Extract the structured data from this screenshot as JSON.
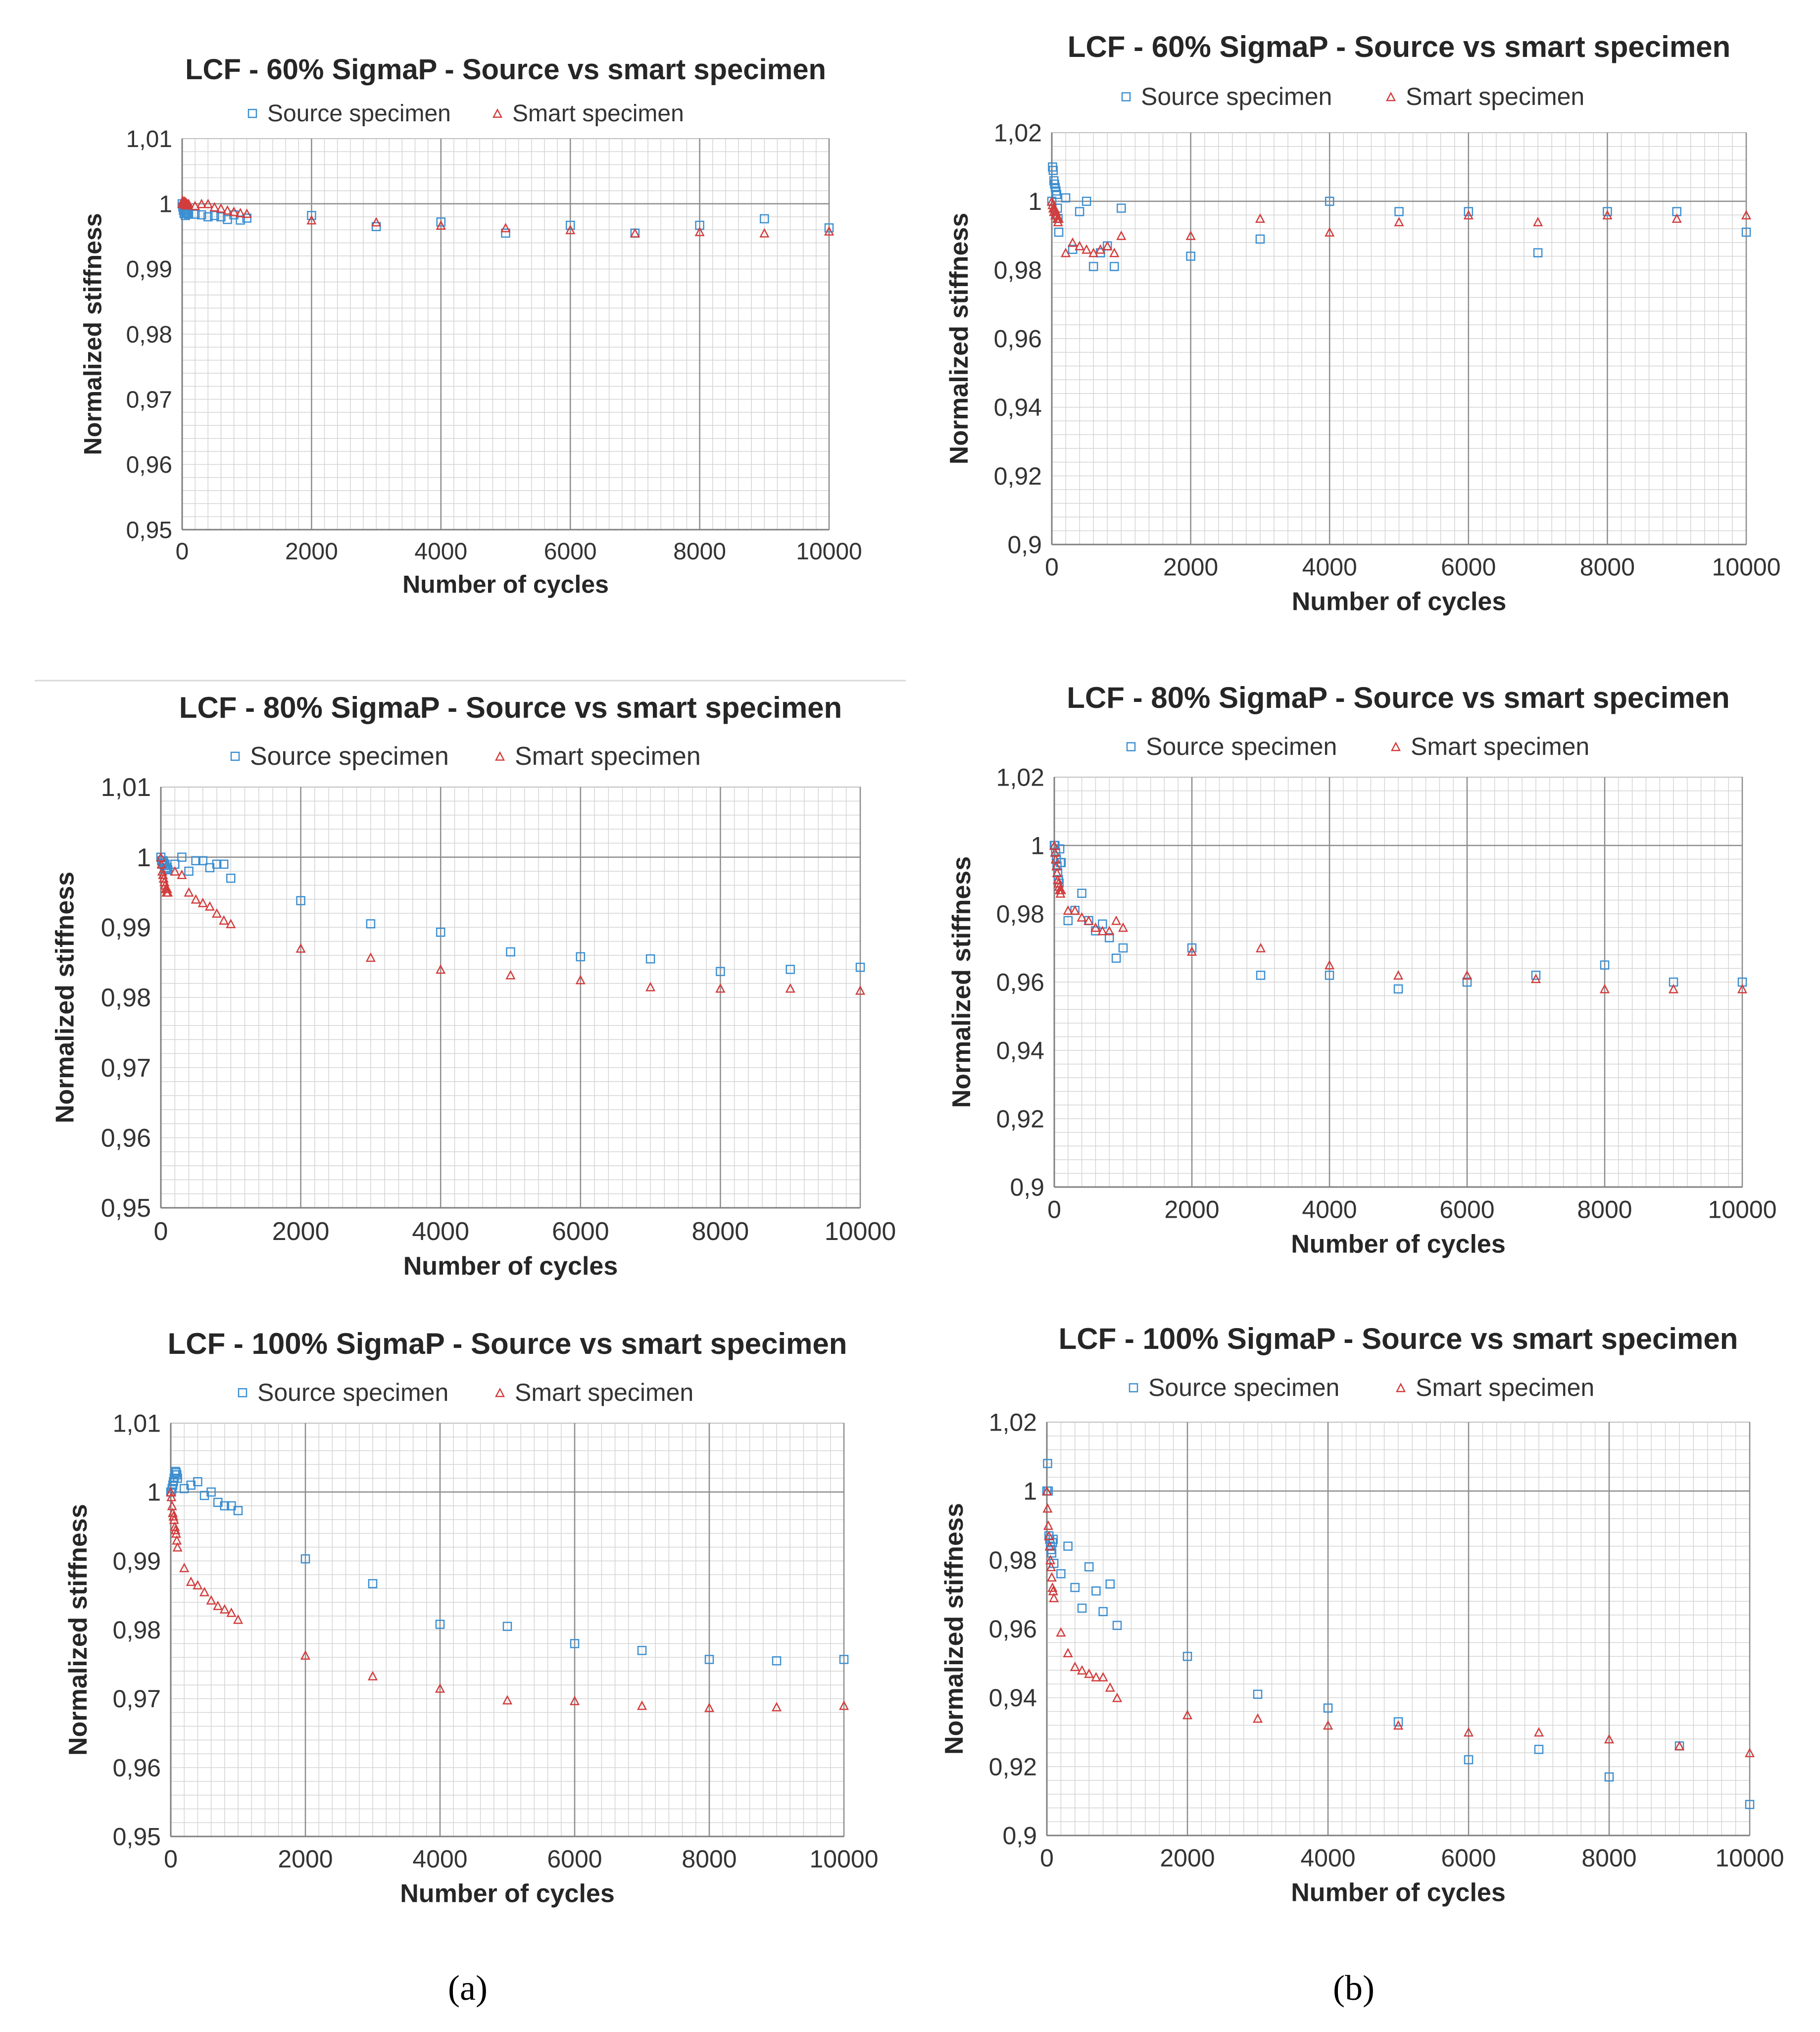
{
  "panel_labels": {
    "a": "(a)",
    "b": "(b)"
  },
  "chart_data": [
    {
      "type": "scatter",
      "title": "LCF - 60% SigmaP - Source vs smart specimen",
      "xlabel": "Number of cycles",
      "ylabel": "Normalized stiffness",
      "xlim": [
        0,
        10000
      ],
      "ylim": [
        0.95,
        1.01
      ],
      "xticks": [
        0,
        2000,
        4000,
        6000,
        8000,
        10000
      ],
      "xtick_labels": [
        "0",
        "2000",
        "4000",
        "6000",
        "8000",
        "10000"
      ],
      "yticks": [
        0.95,
        0.96,
        0.97,
        0.98,
        0.99,
        1.0,
        1.01
      ],
      "ytick_labels": [
        "0,95",
        "0,96",
        "0,97",
        "0,98",
        "0,99",
        "1",
        "1,01"
      ],
      "grid": true,
      "legend": "top",
      "series": [
        {
          "name": "Source specimen",
          "marker": "square",
          "color": "#3c8fd1",
          "x": [
            0,
            10,
            20,
            30,
            40,
            50,
            60,
            70,
            80,
            90,
            100,
            200,
            300,
            400,
            500,
            600,
            700,
            800,
            900,
            1000,
            2000,
            3000,
            4000,
            5000,
            6000,
            7000,
            8000,
            9000,
            10000
          ],
          "y": [
            1.0,
            0.9995,
            0.999,
            0.9985,
            0.999,
            0.9982,
            0.9988,
            0.9985,
            0.9992,
            0.9986,
            0.9984,
            0.9984,
            0.9983,
            0.998,
            0.9982,
            0.998,
            0.9976,
            0.9983,
            0.9975,
            0.9978,
            0.9982,
            0.9965,
            0.9972,
            0.9955,
            0.9967,
            0.9955,
            0.9967,
            0.9977,
            0.9963
          ]
        },
        {
          "name": "Smart specimen",
          "marker": "triangle",
          "color": "#d23c3c",
          "x": [
            0,
            10,
            20,
            30,
            40,
            50,
            60,
            70,
            80,
            90,
            100,
            200,
            300,
            400,
            500,
            600,
            700,
            800,
            900,
            1000,
            2000,
            3000,
            4000,
            5000,
            6000,
            7000,
            8000,
            9000,
            10000
          ],
          "y": [
            1.0,
            1.0005,
            1.0003,
            1.0,
            1.0004,
            0.9998,
            1.0002,
            0.9999,
            1.0,
            0.9998,
            1.0,
            0.9997,
            1.0,
            1.0,
            0.9995,
            0.9993,
            0.999,
            0.9988,
            0.9986,
            0.9985,
            0.9975,
            0.9972,
            0.9967,
            0.9963,
            0.996,
            0.9955,
            0.9957,
            0.9955,
            0.9958
          ]
        }
      ]
    },
    {
      "type": "scatter",
      "title": "LCF - 60% SigmaP - Source vs smart specimen",
      "xlabel": "Number of cycles",
      "ylabel": "Normalized stiffness",
      "xlim": [
        0,
        10000
      ],
      "ylim": [
        0.9,
        1.02
      ],
      "xticks": [
        0,
        2000,
        4000,
        6000,
        8000,
        10000
      ],
      "xtick_labels": [
        "0",
        "2000",
        "4000",
        "6000",
        "8000",
        "10000"
      ],
      "yticks": [
        0.9,
        0.92,
        0.94,
        0.96,
        0.98,
        1.0,
        1.02
      ],
      "ytick_labels": [
        "0,9",
        "0,92",
        "0,94",
        "0,96",
        "0,98",
        "1",
        "1,02"
      ],
      "grid": true,
      "legend": "top",
      "series": [
        {
          "name": "Source specimen",
          "marker": "square",
          "color": "#3c8fd1",
          "x": [
            0,
            10,
            20,
            30,
            40,
            50,
            60,
            70,
            80,
            90,
            100,
            200,
            300,
            400,
            500,
            600,
            700,
            800,
            900,
            1000,
            2000,
            3000,
            4000,
            5000,
            6000,
            7000,
            8000,
            9000,
            10000
          ],
          "y": [
            1.0,
            1.01,
            1.009,
            1.006,
            1.005,
            1.004,
            1.003,
            1.002,
            0.998,
            0.995,
            0.991,
            1.001,
            0.986,
            0.997,
            1.0,
            0.981,
            0.985,
            0.987,
            0.981,
            0.998,
            0.984,
            0.989,
            1.0,
            0.997,
            0.997,
            0.985,
            0.997,
            0.997,
            0.991
          ]
        },
        {
          "name": "Smart specimen",
          "marker": "triangle",
          "color": "#d23c3c",
          "x": [
            0,
            10,
            20,
            30,
            40,
            50,
            60,
            70,
            80,
            90,
            100,
            200,
            300,
            400,
            500,
            600,
            700,
            800,
            900,
            1000,
            2000,
            3000,
            4000,
            5000,
            6000,
            7000,
            8000,
            9000,
            10000
          ],
          "y": [
            1.0,
            0.999,
            0.998,
            0.997,
            0.998,
            0.996,
            0.997,
            0.996,
            0.995,
            0.994,
            0.995,
            0.985,
            0.988,
            0.987,
            0.986,
            0.985,
            0.986,
            0.987,
            0.985,
            0.99,
            0.99,
            0.995,
            0.991,
            0.994,
            0.996,
            0.994,
            0.996,
            0.995,
            0.996
          ]
        }
      ]
    },
    {
      "type": "scatter",
      "title": "LCF - 80% SigmaP - Source vs smart specimen",
      "xlabel": "Number of cycles",
      "ylabel": "Normalized stiffness",
      "xlim": [
        0,
        10000
      ],
      "ylim": [
        0.95,
        1.01
      ],
      "xticks": [
        0,
        2000,
        4000,
        6000,
        8000,
        10000
      ],
      "xtick_labels": [
        "0",
        "2000",
        "4000",
        "6000",
        "8000",
        "10000"
      ],
      "yticks": [
        0.95,
        0.96,
        0.97,
        0.98,
        0.99,
        1.0,
        1.01
      ],
      "ytick_labels": [
        "0,95",
        "0,96",
        "0,97",
        "0,98",
        "0,99",
        "1",
        "1,01"
      ],
      "grid": true,
      "legend": "top",
      "series": [
        {
          "name": "Source specimen",
          "marker": "square",
          "color": "#3c8fd1",
          "x": [
            0,
            10,
            20,
            30,
            40,
            50,
            60,
            70,
            80,
            90,
            100,
            200,
            300,
            400,
            500,
            600,
            700,
            800,
            900,
            1000,
            2000,
            3000,
            4000,
            5000,
            6000,
            7000,
            8000,
            9000,
            10000
          ],
          "y": [
            1.0,
            0.9995,
            0.999,
            0.9995,
            0.9992,
            0.9988,
            0.999,
            0.9985,
            0.9983,
            0.9985,
            0.9982,
            0.999,
            1.0,
            0.998,
            0.9995,
            0.9995,
            0.9985,
            0.999,
            0.999,
            0.997,
            0.9938,
            0.9905,
            0.9893,
            0.9865,
            0.9858,
            0.9855,
            0.9837,
            0.984,
            0.9843
          ]
        },
        {
          "name": "Smart specimen",
          "marker": "triangle",
          "color": "#d23c3c",
          "x": [
            0,
            10,
            20,
            30,
            40,
            50,
            60,
            70,
            80,
            90,
            100,
            200,
            300,
            400,
            500,
            600,
            700,
            800,
            900,
            1000,
            2000,
            3000,
            4000,
            5000,
            6000,
            7000,
            8000,
            9000,
            10000
          ],
          "y": [
            1.0,
            0.999,
            0.998,
            0.9975,
            0.997,
            0.9965,
            0.996,
            0.9955,
            0.995,
            0.9955,
            0.995,
            0.998,
            0.9975,
            0.995,
            0.994,
            0.9935,
            0.993,
            0.992,
            0.991,
            0.9905,
            0.987,
            0.9857,
            0.984,
            0.9832,
            0.9825,
            0.9815,
            0.9813,
            0.9813,
            0.981
          ]
        }
      ]
    },
    {
      "type": "scatter",
      "title": "LCF - 80% SigmaP - Source vs smart specimen",
      "xlabel": "Number of cycles",
      "ylabel": "Normalized stiffness",
      "xlim": [
        0,
        10000
      ],
      "ylim": [
        0.9,
        1.02
      ],
      "xticks": [
        0,
        2000,
        4000,
        6000,
        8000,
        10000
      ],
      "xtick_labels": [
        "0",
        "2000",
        "4000",
        "6000",
        "8000",
        "10000"
      ],
      "yticks": [
        0.9,
        0.92,
        0.94,
        0.96,
        0.98,
        1.0,
        1.02
      ],
      "ytick_labels": [
        "0,9",
        "0,92",
        "0,94",
        "0,96",
        "0,98",
        "1",
        "1,02"
      ],
      "grid": true,
      "legend": "top",
      "series": [
        {
          "name": "Source specimen",
          "marker": "square",
          "color": "#3c8fd1",
          "x": [
            0,
            10,
            20,
            30,
            40,
            50,
            60,
            70,
            80,
            90,
            100,
            200,
            300,
            400,
            500,
            600,
            700,
            800,
            900,
            1000,
            2000,
            3000,
            4000,
            5000,
            6000,
            7000,
            8000,
            9000,
            10000
          ],
          "y": [
            1.0,
            1.0,
            0.998,
            0.996,
            0.994,
            0.992,
            0.99,
            0.989,
            0.999,
            0.995,
            0.995,
            0.978,
            0.981,
            0.986,
            0.978,
            0.975,
            0.977,
            0.973,
            0.967,
            0.97,
            0.97,
            0.962,
            0.962,
            0.958,
            0.96,
            0.962,
            0.965,
            0.96,
            0.96
          ]
        },
        {
          "name": "Smart specimen",
          "marker": "triangle",
          "color": "#d23c3c",
          "x": [
            0,
            10,
            20,
            30,
            40,
            50,
            60,
            70,
            80,
            90,
            100,
            200,
            300,
            400,
            500,
            600,
            700,
            800,
            900,
            1000,
            2000,
            3000,
            4000,
            5000,
            6000,
            7000,
            8000,
            9000,
            10000
          ],
          "y": [
            1.0,
            0.998,
            0.996,
            0.994,
            0.992,
            0.99,
            0.989,
            0.988,
            0.987,
            0.986,
            0.987,
            0.981,
            0.981,
            0.979,
            0.978,
            0.976,
            0.975,
            0.975,
            0.978,
            0.976,
            0.969,
            0.97,
            0.965,
            0.962,
            0.962,
            0.961,
            0.958,
            0.958,
            0.958
          ]
        }
      ]
    },
    {
      "type": "scatter",
      "title": "LCF - 100% SigmaP - Source vs smart specimen",
      "xlabel": "Number of cycles",
      "ylabel": "Normalized stiffness",
      "xlim": [
        0,
        10000
      ],
      "ylim": [
        0.95,
        1.01
      ],
      "xticks": [
        0,
        2000,
        4000,
        6000,
        8000,
        10000
      ],
      "xtick_labels": [
        "0",
        "2000",
        "4000",
        "6000",
        "8000",
        "10000"
      ],
      "yticks": [
        0.95,
        0.96,
        0.97,
        0.98,
        0.99,
        1.0,
        1.01
      ],
      "ytick_labels": [
        "0,95",
        "0,96",
        "0,97",
        "0,98",
        "0,99",
        "1",
        "1,01"
      ],
      "grid": true,
      "legend": "top",
      "series": [
        {
          "name": "Source specimen",
          "marker": "square",
          "color": "#3c8fd1",
          "x": [
            0,
            10,
            20,
            30,
            40,
            50,
            60,
            70,
            80,
            90,
            100,
            200,
            300,
            400,
            500,
            600,
            700,
            800,
            900,
            1000,
            2000,
            3000,
            4000,
            5000,
            6000,
            7000,
            8000,
            9000,
            10000
          ],
          "y": [
            1.0,
            1.0,
            1.0005,
            1.001,
            1.0015,
            1.002,
            1.0025,
            1.003,
            1.0028,
            1.0025,
            1.002,
            1.0005,
            1.001,
            1.0015,
            0.9995,
            1.0,
            0.9985,
            0.998,
            0.998,
            0.9973,
            0.9903,
            0.9867,
            0.9808,
            0.9805,
            0.978,
            0.977,
            0.9757,
            0.9755,
            0.9757
          ]
        },
        {
          "name": "Smart specimen",
          "marker": "triangle",
          "color": "#d23c3c",
          "x": [
            0,
            10,
            20,
            30,
            40,
            50,
            60,
            70,
            80,
            90,
            100,
            200,
            300,
            400,
            500,
            600,
            700,
            800,
            900,
            1000,
            2000,
            3000,
            4000,
            5000,
            6000,
            7000,
            8000,
            9000,
            10000
          ],
          "y": [
            1.0,
            0.9993,
            0.998,
            0.997,
            0.9965,
            0.996,
            0.995,
            0.9945,
            0.994,
            0.993,
            0.992,
            0.989,
            0.987,
            0.9865,
            0.9855,
            0.9843,
            0.9835,
            0.983,
            0.9825,
            0.9815,
            0.9763,
            0.9733,
            0.9715,
            0.9698,
            0.9697,
            0.969,
            0.9687,
            0.9688,
            0.969
          ]
        }
      ]
    },
    {
      "type": "scatter",
      "title": "LCF - 100% SigmaP - Source vs smart specimen",
      "xlabel": "Number of cycles",
      "ylabel": "Normalized stiffness",
      "xlim": [
        0,
        10000
      ],
      "ylim": [
        0.9,
        1.02
      ],
      "xticks": [
        0,
        2000,
        4000,
        6000,
        8000,
        10000
      ],
      "xtick_labels": [
        "0",
        "2000",
        "4000",
        "6000",
        "8000",
        "10000"
      ],
      "yticks": [
        0.9,
        0.92,
        0.94,
        0.96,
        0.98,
        1.0,
        1.02
      ],
      "ytick_labels": [
        "0,9",
        "0,92",
        "0,94",
        "0,96",
        "0,98",
        "1",
        "1,02"
      ],
      "grid": true,
      "legend": "top",
      "series": [
        {
          "name": "Source specimen",
          "marker": "square",
          "color": "#3c8fd1",
          "x": [
            0,
            10,
            20,
            30,
            40,
            50,
            60,
            70,
            80,
            90,
            100,
            200,
            300,
            400,
            500,
            600,
            700,
            800,
            900,
            1000,
            2000,
            3000,
            4000,
            5000,
            6000,
            7000,
            8000,
            9000,
            10000
          ],
          "y": [
            1.0,
            1.008,
            1.0,
            0.987,
            0.986,
            0.984,
            0.983,
            0.982,
            0.985,
            0.986,
            0.979,
            0.976,
            0.984,
            0.972,
            0.966,
            0.978,
            0.971,
            0.965,
            0.973,
            0.961,
            0.952,
            0.941,
            0.937,
            0.933,
            0.922,
            0.925,
            0.917,
            0.926,
            0.909
          ]
        },
        {
          "name": "Smart specimen",
          "marker": "triangle",
          "color": "#d23c3c",
          "x": [
            0,
            10,
            20,
            30,
            40,
            50,
            60,
            70,
            80,
            90,
            100,
            200,
            300,
            400,
            500,
            600,
            700,
            800,
            900,
            1000,
            2000,
            3000,
            4000,
            5000,
            6000,
            7000,
            8000,
            9000,
            10000
          ],
          "y": [
            1.0,
            0.995,
            0.99,
            0.987,
            0.984,
            0.98,
            0.978,
            0.975,
            0.972,
            0.971,
            0.969,
            0.959,
            0.953,
            0.949,
            0.948,
            0.947,
            0.946,
            0.946,
            0.943,
            0.94,
            0.935,
            0.934,
            0.932,
            0.932,
            0.93,
            0.93,
            0.928,
            0.926,
            0.924
          ]
        }
      ]
    }
  ]
}
